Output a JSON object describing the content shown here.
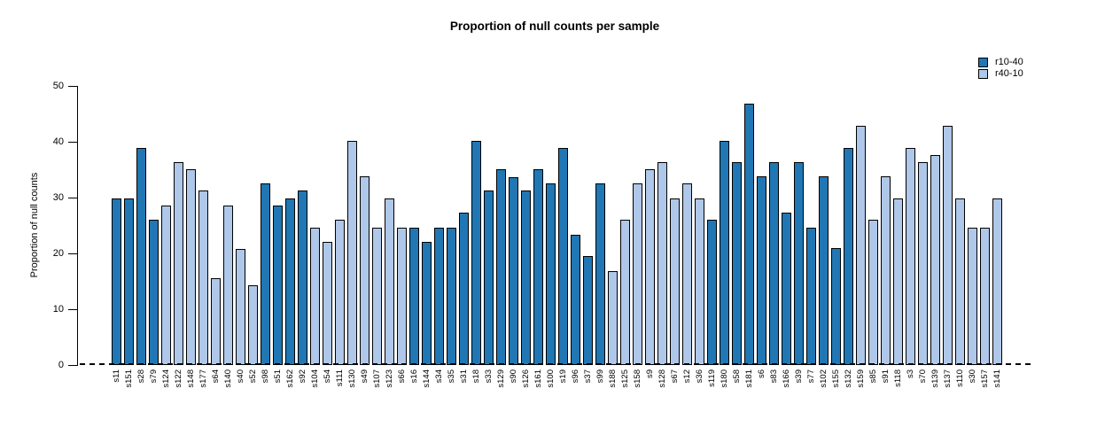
{
  "title": "Proportion of null counts per sample",
  "ylabel": "Proportion of null counts",
  "legend": [
    {
      "label": "r10-40",
      "color": "#2077B4"
    },
    {
      "label": "r40-10",
      "color": "#AFC7E8"
    }
  ],
  "chart_data": {
    "type": "bar",
    "title": "Proportion of null counts per sample",
    "xlabel": "",
    "ylabel": "Proportion of null counts",
    "ylim": [
      0,
      50
    ],
    "yticks": [
      0,
      10,
      20,
      30,
      40,
      50
    ],
    "grid": false,
    "legend_position": "top-right",
    "zero_line_style": "dashed",
    "series_colors": {
      "r10-40": "#2077B4",
      "r40-10": "#AFC7E8"
    },
    "bars": [
      {
        "sample": "s11",
        "value": 29.8,
        "group": "r10-40"
      },
      {
        "sample": "s151",
        "value": 29.8,
        "group": "r10-40"
      },
      {
        "sample": "s28",
        "value": 38.9,
        "group": "r10-40"
      },
      {
        "sample": "s79",
        "value": 26.0,
        "group": "r10-40"
      },
      {
        "sample": "s124",
        "value": 28.6,
        "group": "r40-10"
      },
      {
        "sample": "s122",
        "value": 36.4,
        "group": "r40-10"
      },
      {
        "sample": "s148",
        "value": 35.0,
        "group": "r40-10"
      },
      {
        "sample": "s177",
        "value": 31.2,
        "group": "r40-10"
      },
      {
        "sample": "s64",
        "value": 15.6,
        "group": "r40-10"
      },
      {
        "sample": "s140",
        "value": 28.6,
        "group": "r40-10"
      },
      {
        "sample": "s40",
        "value": 20.8,
        "group": "r40-10"
      },
      {
        "sample": "s52",
        "value": 14.3,
        "group": "r40-10"
      },
      {
        "sample": "s98",
        "value": 32.5,
        "group": "r10-40"
      },
      {
        "sample": "s51",
        "value": 28.6,
        "group": "r10-40"
      },
      {
        "sample": "s162",
        "value": 29.9,
        "group": "r10-40"
      },
      {
        "sample": "s92",
        "value": 31.2,
        "group": "r10-40"
      },
      {
        "sample": "s104",
        "value": 24.6,
        "group": "r40-10"
      },
      {
        "sample": "s54",
        "value": 22.1,
        "group": "r40-10"
      },
      {
        "sample": "s111",
        "value": 26.0,
        "group": "r40-10"
      },
      {
        "sample": "s130",
        "value": 40.2,
        "group": "r40-10"
      },
      {
        "sample": "s49",
        "value": 33.8,
        "group": "r40-10"
      },
      {
        "sample": "s107",
        "value": 24.6,
        "group": "r40-10"
      },
      {
        "sample": "s123",
        "value": 29.8,
        "group": "r40-10"
      },
      {
        "sample": "s66",
        "value": 24.6,
        "group": "r40-10"
      },
      {
        "sample": "s16",
        "value": 24.6,
        "group": "r10-40"
      },
      {
        "sample": "s144",
        "value": 22.1,
        "group": "r10-40"
      },
      {
        "sample": "s34",
        "value": 24.6,
        "group": "r10-40"
      },
      {
        "sample": "s35",
        "value": 24.6,
        "group": "r10-40"
      },
      {
        "sample": "s31",
        "value": 27.3,
        "group": "r10-40"
      },
      {
        "sample": "s18",
        "value": 40.1,
        "group": "r10-40"
      },
      {
        "sample": "s33",
        "value": 31.2,
        "group": "r10-40"
      },
      {
        "sample": "s129",
        "value": 35.0,
        "group": "r10-40"
      },
      {
        "sample": "s90",
        "value": 33.7,
        "group": "r10-40"
      },
      {
        "sample": "s126",
        "value": 31.2,
        "group": "r10-40"
      },
      {
        "sample": "s161",
        "value": 35.0,
        "group": "r10-40"
      },
      {
        "sample": "s100",
        "value": 32.5,
        "group": "r10-40"
      },
      {
        "sample": "s19",
        "value": 38.9,
        "group": "r10-40"
      },
      {
        "sample": "s96",
        "value": 23.4,
        "group": "r10-40"
      },
      {
        "sample": "s37",
        "value": 19.6,
        "group": "r10-40"
      },
      {
        "sample": "s99",
        "value": 32.5,
        "group": "r10-40"
      },
      {
        "sample": "s188",
        "value": 16.9,
        "group": "r40-10"
      },
      {
        "sample": "s125",
        "value": 26.0,
        "group": "r40-10"
      },
      {
        "sample": "s158",
        "value": 32.5,
        "group": "r40-10"
      },
      {
        "sample": "s9",
        "value": 35.0,
        "group": "r40-10"
      },
      {
        "sample": "s128",
        "value": 36.4,
        "group": "r40-10"
      },
      {
        "sample": "s67",
        "value": 29.9,
        "group": "r40-10"
      },
      {
        "sample": "s12",
        "value": 32.5,
        "group": "r40-10"
      },
      {
        "sample": "s36",
        "value": 29.8,
        "group": "r40-10"
      },
      {
        "sample": "s119",
        "value": 26.0,
        "group": "r10-40"
      },
      {
        "sample": "s180",
        "value": 40.2,
        "group": "r10-40"
      },
      {
        "sample": "s58",
        "value": 36.4,
        "group": "r10-40"
      },
      {
        "sample": "s181",
        "value": 46.8,
        "group": "r10-40"
      },
      {
        "sample": "s6",
        "value": 33.8,
        "group": "r10-40"
      },
      {
        "sample": "s83",
        "value": 36.4,
        "group": "r10-40"
      },
      {
        "sample": "s166",
        "value": 27.3,
        "group": "r10-40"
      },
      {
        "sample": "s39",
        "value": 36.4,
        "group": "r10-40"
      },
      {
        "sample": "s77",
        "value": 24.6,
        "group": "r10-40"
      },
      {
        "sample": "s102",
        "value": 33.8,
        "group": "r10-40"
      },
      {
        "sample": "s155",
        "value": 20.9,
        "group": "r10-40"
      },
      {
        "sample": "s132",
        "value": 38.9,
        "group": "r10-40"
      },
      {
        "sample": "s159",
        "value": 42.8,
        "group": "r40-10"
      },
      {
        "sample": "s85",
        "value": 26.0,
        "group": "r40-10"
      },
      {
        "sample": "s91",
        "value": 33.8,
        "group": "r40-10"
      },
      {
        "sample": "s118",
        "value": 29.9,
        "group": "r40-10"
      },
      {
        "sample": "s3",
        "value": 38.9,
        "group": "r40-10"
      },
      {
        "sample": "s70",
        "value": 36.4,
        "group": "r40-10"
      },
      {
        "sample": "s139",
        "value": 37.6,
        "group": "r40-10"
      },
      {
        "sample": "s137",
        "value": 42.8,
        "group": "r40-10"
      },
      {
        "sample": "s110",
        "value": 29.9,
        "group": "r40-10"
      },
      {
        "sample": "s30",
        "value": 24.6,
        "group": "r40-10"
      },
      {
        "sample": "s157",
        "value": 24.6,
        "group": "r40-10"
      },
      {
        "sample": "s141",
        "value": 29.8,
        "group": "r40-10"
      }
    ]
  }
}
